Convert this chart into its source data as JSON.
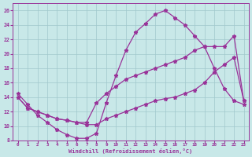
{
  "xlabel": "Windchill (Refroidissement éolien,°C)",
  "bg_color": "#c8e8e8",
  "grid_color": "#a0c8cc",
  "line_color": "#993399",
  "xlim_min": -0.5,
  "xlim_max": 23.5,
  "ylim_min": 8,
  "ylim_max": 27,
  "xticks": [
    0,
    1,
    2,
    3,
    4,
    5,
    6,
    7,
    8,
    9,
    10,
    11,
    12,
    13,
    14,
    15,
    16,
    17,
    18,
    19,
    20,
    21,
    22,
    23
  ],
  "yticks": [
    8,
    10,
    12,
    14,
    16,
    18,
    20,
    22,
    24,
    26
  ],
  "line1_x": [
    0,
    1,
    2,
    3,
    4,
    5,
    6,
    7,
    8,
    9,
    10,
    11,
    12,
    13,
    14,
    15,
    16,
    17,
    18,
    19,
    20,
    21,
    22,
    23
  ],
  "line1_y": [
    14.5,
    13.0,
    11.5,
    10.5,
    9.5,
    8.8,
    8.3,
    8.3,
    9.0,
    13.2,
    17.0,
    20.5,
    23.0,
    24.2,
    25.5,
    26.0,
    25.0,
    24.0,
    22.5,
    21.0,
    18.0,
    15.2,
    13.5,
    13.0
  ],
  "line2_x": [
    0,
    1,
    2,
    3,
    4,
    5,
    6,
    7,
    8,
    9,
    10,
    11,
    12,
    13,
    14,
    15,
    16,
    17,
    18,
    19,
    20,
    21,
    22,
    23
  ],
  "line2_y": [
    14.0,
    12.5,
    12.0,
    11.5,
    11.0,
    10.8,
    10.5,
    10.5,
    13.2,
    14.5,
    15.5,
    16.5,
    17.0,
    17.5,
    18.0,
    18.5,
    19.0,
    19.5,
    20.5,
    21.0,
    21.0,
    21.0,
    22.5,
    13.5
  ],
  "line3_x": [
    0,
    1,
    2,
    3,
    4,
    5,
    6,
    7,
    8,
    9,
    10,
    11,
    12,
    13,
    14,
    15,
    16,
    17,
    18,
    19,
    20,
    21,
    22,
    23
  ],
  "line3_y": [
    14.0,
    12.5,
    12.0,
    11.5,
    11.0,
    10.8,
    10.5,
    10.2,
    10.2,
    11.0,
    11.5,
    12.0,
    12.5,
    13.0,
    13.5,
    13.8,
    14.0,
    14.5,
    15.0,
    16.0,
    17.5,
    18.5,
    19.5,
    13.5
  ]
}
